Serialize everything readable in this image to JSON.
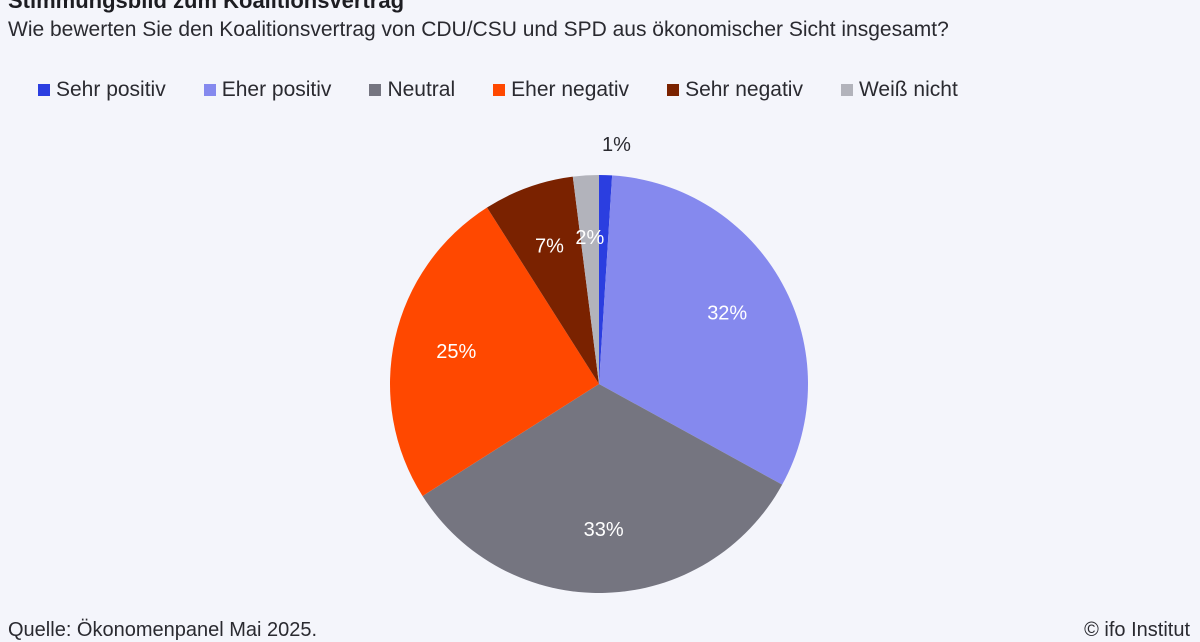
{
  "header": {
    "title": "Stimmungsbild zum Koalitionsvertrag",
    "subtitle": "Wie bewerten Sie den Koalitionsvertrag von CDU/CSU und SPD aus ökonomischer Sicht insgesamt?"
  },
  "footer": {
    "source": "Quelle: Ökonomenpanel Mai 2025.",
    "credit": "© ifo Institut"
  },
  "chart_data": {
    "type": "pie",
    "title": "Stimmungsbild zum Koalitionsvertrag",
    "subtitle": "Wie bewerten Sie den Koalitionsvertrag von CDU/CSU und SPD aus ökonomischer Sicht insgesamt?",
    "legend_position": "top",
    "unit": "%",
    "slices": [
      {
        "name": "Sehr positiv",
        "value": 1,
        "label": "1%",
        "color": "#2b3ee0"
      },
      {
        "name": "Eher positiv",
        "value": 32,
        "label": "32%",
        "color": "#8589ee"
      },
      {
        "name": "Neutral",
        "value": 33,
        "label": "33%",
        "color": "#757580"
      },
      {
        "name": "Eher negativ",
        "value": 25,
        "label": "25%",
        "color": "#ff4800"
      },
      {
        "name": "Sehr negativ",
        "value": 7,
        "label": "7%",
        "color": "#7a2200"
      },
      {
        "name": "Weiß nicht",
        "value": 2,
        "label": "2%",
        "color": "#b2b3bb"
      }
    ]
  }
}
